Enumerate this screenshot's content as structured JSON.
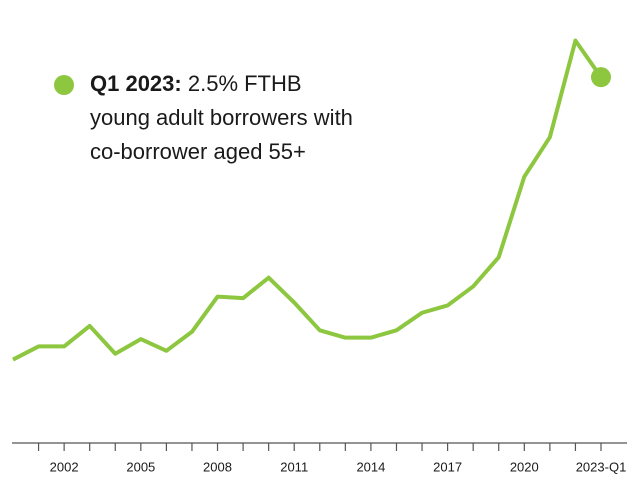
{
  "chart_data": {
    "type": "line",
    "annotation": {
      "label": "Q1 2023:",
      "lines": [
        "2.5% FTHB",
        "young adult borrowers with",
        "co-borrower aged 55+"
      ]
    },
    "categories": [
      null,
      null,
      "2002",
      null,
      null,
      "2005",
      null,
      null,
      "2008",
      null,
      null,
      "2011",
      null,
      null,
      "2014",
      null,
      null,
      "2017",
      null,
      null,
      "2020",
      null,
      null,
      "2023-Q1"
    ],
    "values": [
      0.57,
      0.66,
      0.66,
      0.8,
      0.61,
      0.71,
      0.63,
      0.76,
      1.0,
      0.99,
      1.13,
      0.96,
      0.77,
      0.72,
      0.72,
      0.77,
      0.89,
      0.94,
      1.07,
      1.27,
      1.82,
      2.09,
      2.75,
      2.5
    ],
    "color": "#8dc63f",
    "ylim": [
      0,
      3
    ]
  }
}
